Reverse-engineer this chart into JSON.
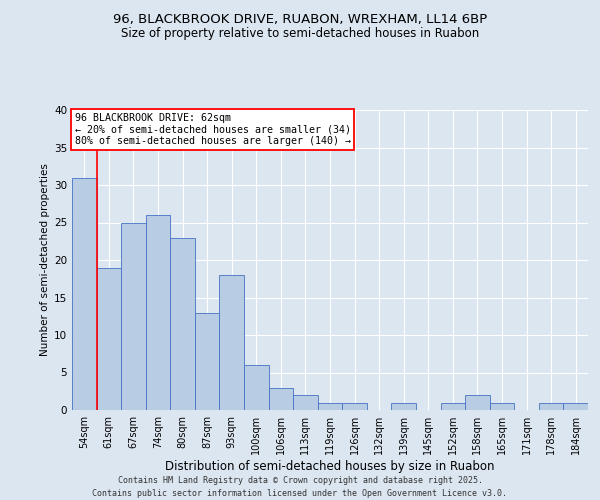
{
  "title_line1": "96, BLACKBROOK DRIVE, RUABON, WREXHAM, LL14 6BP",
  "title_line2": "Size of property relative to semi-detached houses in Ruabon",
  "xlabel": "Distribution of semi-detached houses by size in Ruabon",
  "ylabel": "Number of semi-detached properties",
  "categories": [
    "54sqm",
    "61sqm",
    "67sqm",
    "74sqm",
    "80sqm",
    "87sqm",
    "93sqm",
    "100sqm",
    "106sqm",
    "113sqm",
    "119sqm",
    "126sqm",
    "132sqm",
    "139sqm",
    "145sqm",
    "152sqm",
    "158sqm",
    "165sqm",
    "171sqm",
    "178sqm",
    "184sqm"
  ],
  "values": [
    31,
    19,
    25,
    26,
    23,
    13,
    18,
    6,
    3,
    2,
    1,
    1,
    0,
    1,
    0,
    1,
    2,
    1,
    0,
    1,
    1
  ],
  "bar_color": "#b8cce4",
  "bar_edge_color": "#4472c4",
  "background_color": "#dce6f1",
  "plot_bg_color": "#dce6f1",
  "annotation_line1": "96 BLACKBROOK DRIVE: 62sqm",
  "annotation_line2": "← 20% of semi-detached houses are smaller (34)",
  "annotation_line3": "80% of semi-detached houses are larger (140) →",
  "footer_line1": "Contains HM Land Registry data © Crown copyright and database right 2025.",
  "footer_line2": "Contains public sector information licensed under the Open Government Licence v3.0.",
  "ylim": [
    0,
    40
  ],
  "yticks": [
    0,
    5,
    10,
    15,
    20,
    25,
    30,
    35,
    40
  ],
  "red_line_x": 0.5
}
